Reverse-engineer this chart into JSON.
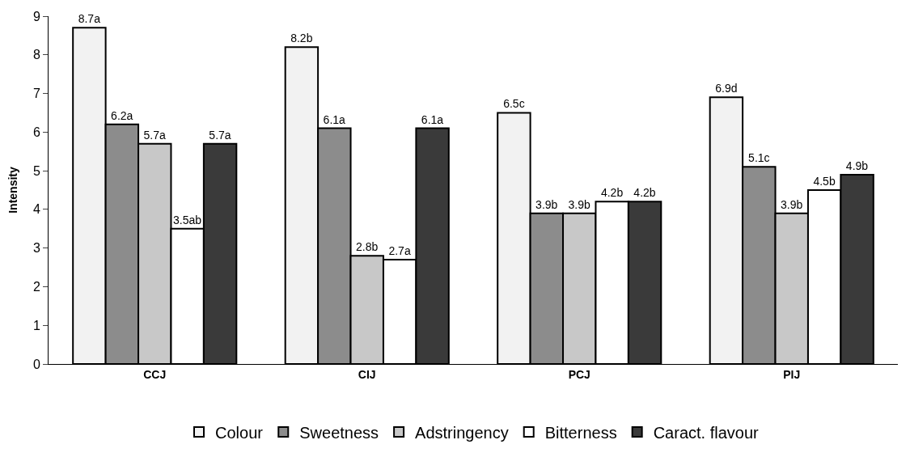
{
  "chart_data": {
    "type": "bar",
    "ylabel": "Intensity",
    "categories": [
      "CCJ",
      "CIJ",
      "PCJ",
      "PIJ"
    ],
    "series": [
      {
        "name": "Colour",
        "color": "#f2f2f2",
        "values": [
          8.7,
          8.2,
          6.5,
          6.9
        ],
        "value_labels": [
          "8.7a",
          "8.2b",
          "6.5c",
          "6.9d"
        ]
      },
      {
        "name": "Sweetness",
        "color": "#8c8c8c",
        "values": [
          6.2,
          6.1,
          3.9,
          5.1
        ],
        "value_labels": [
          "6.2a",
          "6.1a",
          "3.9b",
          "5.1c"
        ]
      },
      {
        "name": "Adstringency",
        "color": "#c8c8c8",
        "values": [
          5.7,
          2.8,
          3.9,
          3.9
        ],
        "value_labels": [
          "5.7a",
          "2.8b",
          "3.9b",
          "3.9b"
        ]
      },
      {
        "name": "Bitterness",
        "color": "#ffffff",
        "values": [
          3.5,
          2.7,
          4.2,
          4.5
        ],
        "value_labels": [
          "3.5ab",
          "2.7a",
          "4.2b",
          "4.5b"
        ]
      },
      {
        "name": "Caract. flavour",
        "color": "#3a3a3a",
        "values": [
          5.7,
          6.1,
          4.2,
          4.9
        ],
        "value_labels": [
          "5.7a",
          "6.1a",
          "4.2b",
          "4.9b"
        ]
      }
    ],
    "ylim": [
      0,
      9
    ],
    "yticks": [
      0,
      1,
      2,
      3,
      4,
      5,
      6,
      7,
      8,
      9
    ],
    "grid": false,
    "legend": "bottom"
  }
}
